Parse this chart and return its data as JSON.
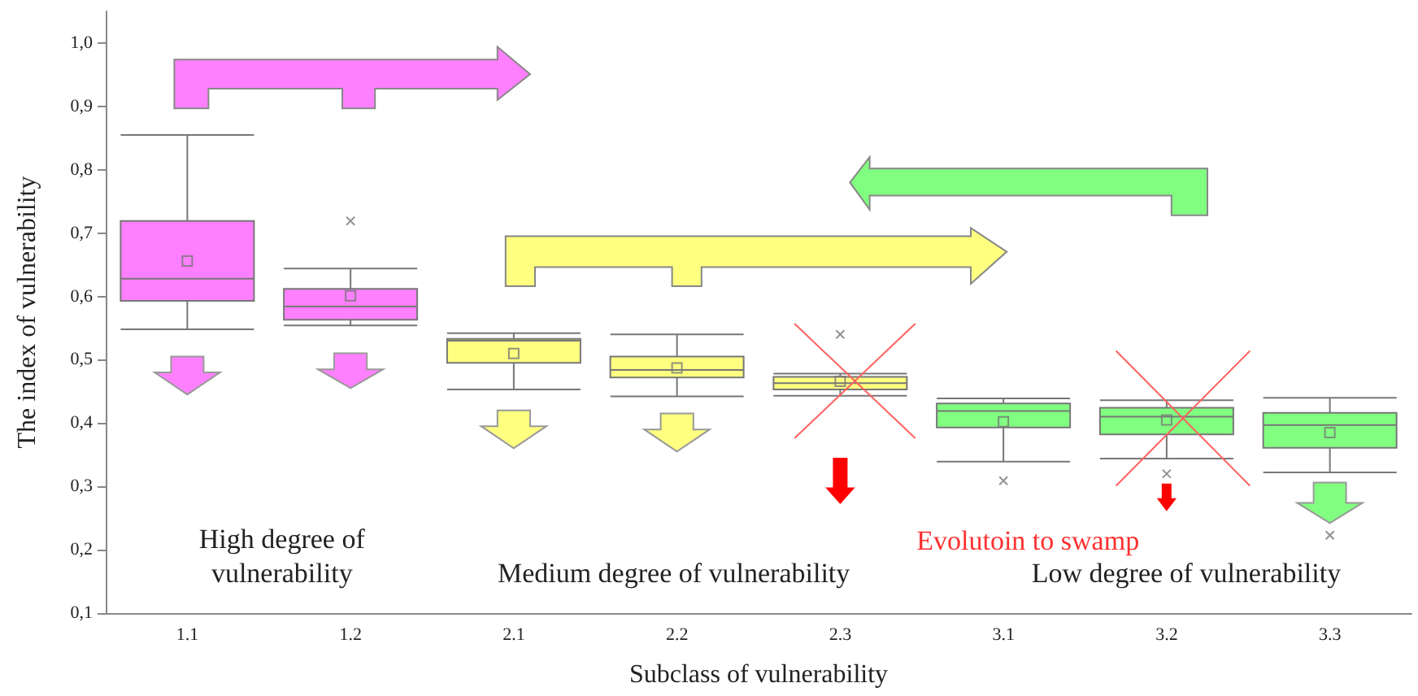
{
  "chart_data": {
    "type": "box",
    "xlabel": "Subclass of vulnerability",
    "ylabel": "The index of vulnerability",
    "categories": [
      "1.1",
      "1.2",
      "2.1",
      "2.2",
      "2.3",
      "3.1",
      "3.2",
      "3.3"
    ],
    "colors": [
      "#ff80ff",
      "#ff80ff",
      "#ffff80",
      "#ffff80",
      "#ffff80",
      "#80ff80",
      "#80ff80",
      "#80ff80"
    ],
    "boxes": [
      {
        "low": 0.548,
        "q1": 0.593,
        "median": 0.628,
        "q3": 0.719,
        "high": 0.855,
        "mean": 0.656
      },
      {
        "low": 0.554,
        "q1": 0.563,
        "median": 0.584,
        "q3": 0.612,
        "high": 0.644,
        "mean": 0.601,
        "outliers": [
          0.719
        ]
      },
      {
        "low": 0.453,
        "q1": 0.495,
        "median": 0.53,
        "q3": 0.533,
        "high": 0.542,
        "mean": 0.51
      },
      {
        "low": 0.442,
        "q1": 0.472,
        "median": 0.484,
        "q3": 0.505,
        "high": 0.54,
        "mean": 0.487
      },
      {
        "low": 0.443,
        "q1": 0.453,
        "median": 0.463,
        "q3": 0.473,
        "high": 0.478,
        "mean": 0.466,
        "outliers": [
          0.54
        ]
      },
      {
        "low": 0.339,
        "q1": 0.393,
        "median": 0.419,
        "q3": 0.431,
        "high": 0.439,
        "mean": 0.402,
        "outliers": [
          0.309
        ]
      },
      {
        "low": 0.344,
        "q1": 0.382,
        "median": 0.41,
        "q3": 0.424,
        "high": 0.436,
        "mean": 0.405,
        "outliers": [
          0.32
        ]
      },
      {
        "low": 0.322,
        "q1": 0.361,
        "median": 0.397,
        "q3": 0.416,
        "high": 0.44,
        "mean": 0.385,
        "outliers": [
          0.223
        ]
      }
    ],
    "ylim": [
      0.1,
      1.05
    ],
    "yticks": [
      {
        "value": 0.1,
        "label": "0,1"
      },
      {
        "value": 0.2,
        "label": "0,2"
      },
      {
        "value": 0.3,
        "label": "0,3"
      },
      {
        "value": 0.4,
        "label": "0,4"
      },
      {
        "value": 0.5,
        "label": "0,5"
      },
      {
        "value": 0.6,
        "label": "0,6"
      },
      {
        "value": 0.7,
        "label": "0,7"
      },
      {
        "value": 0.8,
        "label": "0,8"
      },
      {
        "value": 0.9,
        "label": "0,9"
      },
      {
        "value": 1.0,
        "label": "1,0"
      }
    ],
    "annotations": [
      "High degree of vulnerability",
      "Medium degree of vulnerability",
      "Evolutoin to swamp",
      "Low degree of vulnerability"
    ],
    "grid": false
  }
}
